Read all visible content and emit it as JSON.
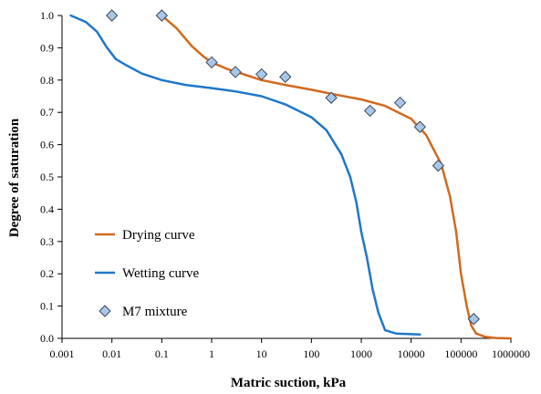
{
  "chart_data": {
    "type": "scatter",
    "xlabel": "Matric suction, kPa",
    "ylabel": "Degree of saturation",
    "xscale": "log",
    "xlim": [
      0.001,
      1000000
    ],
    "ylim": [
      0,
      1
    ],
    "x_tick_labels": [
      "0.001",
      "0.01",
      "0.1",
      "1",
      "10",
      "100",
      "1000",
      "10000",
      "100000",
      "1000000"
    ],
    "y_tick_labels": [
      "0.0",
      "0.1",
      "0.2",
      "0.3",
      "0.4",
      "0.5",
      "0.6",
      "0.7",
      "0.8",
      "0.9",
      "1.0"
    ],
    "grid": false,
    "legend_position": "bottom-left",
    "series": [
      {
        "name": "Drying curve",
        "kind": "line",
        "color": "#D2691E",
        "x": [
          0.1,
          0.2,
          0.4,
          0.7,
          1,
          2,
          5,
          10,
          30,
          100,
          300,
          1000,
          3000,
          10000,
          20000,
          40000,
          60000,
          80000,
          100000,
          130000,
          160000,
          200000,
          300000,
          500000,
          1000000
        ],
        "y": [
          1.0,
          0.96,
          0.905,
          0.872,
          0.855,
          0.835,
          0.815,
          0.8,
          0.785,
          0.77,
          0.755,
          0.74,
          0.72,
          0.68,
          0.63,
          0.54,
          0.44,
          0.33,
          0.2,
          0.1,
          0.04,
          0.015,
          0.005,
          0.001,
          0.0
        ]
      },
      {
        "name": "Wetting curve",
        "kind": "line",
        "color": "#1F77C9",
        "x": [
          0.0015,
          0.003,
          0.005,
          0.008,
          0.012,
          0.02,
          0.04,
          0.1,
          0.3,
          1,
          3,
          10,
          30,
          100,
          200,
          400,
          600,
          800,
          1000,
          1300,
          1700,
          2200,
          3000,
          5000,
          10000,
          15000
        ],
        "y": [
          1.0,
          0.98,
          0.95,
          0.9,
          0.865,
          0.845,
          0.82,
          0.8,
          0.785,
          0.775,
          0.765,
          0.75,
          0.725,
          0.685,
          0.645,
          0.57,
          0.5,
          0.42,
          0.33,
          0.25,
          0.15,
          0.08,
          0.025,
          0.015,
          0.013,
          0.012
        ]
      },
      {
        "name": "M7 mixture",
        "kind": "scatter",
        "marker": "diamond",
        "color": "#A9C7E8",
        "x": [
          0.01,
          0.1,
          1,
          3,
          10,
          30,
          250,
          1500,
          6000,
          15000,
          35000,
          180000
        ],
        "y": [
          1.0,
          1.0,
          0.855,
          0.825,
          0.818,
          0.81,
          0.745,
          0.705,
          0.73,
          0.655,
          0.535,
          0.06
        ]
      }
    ]
  }
}
